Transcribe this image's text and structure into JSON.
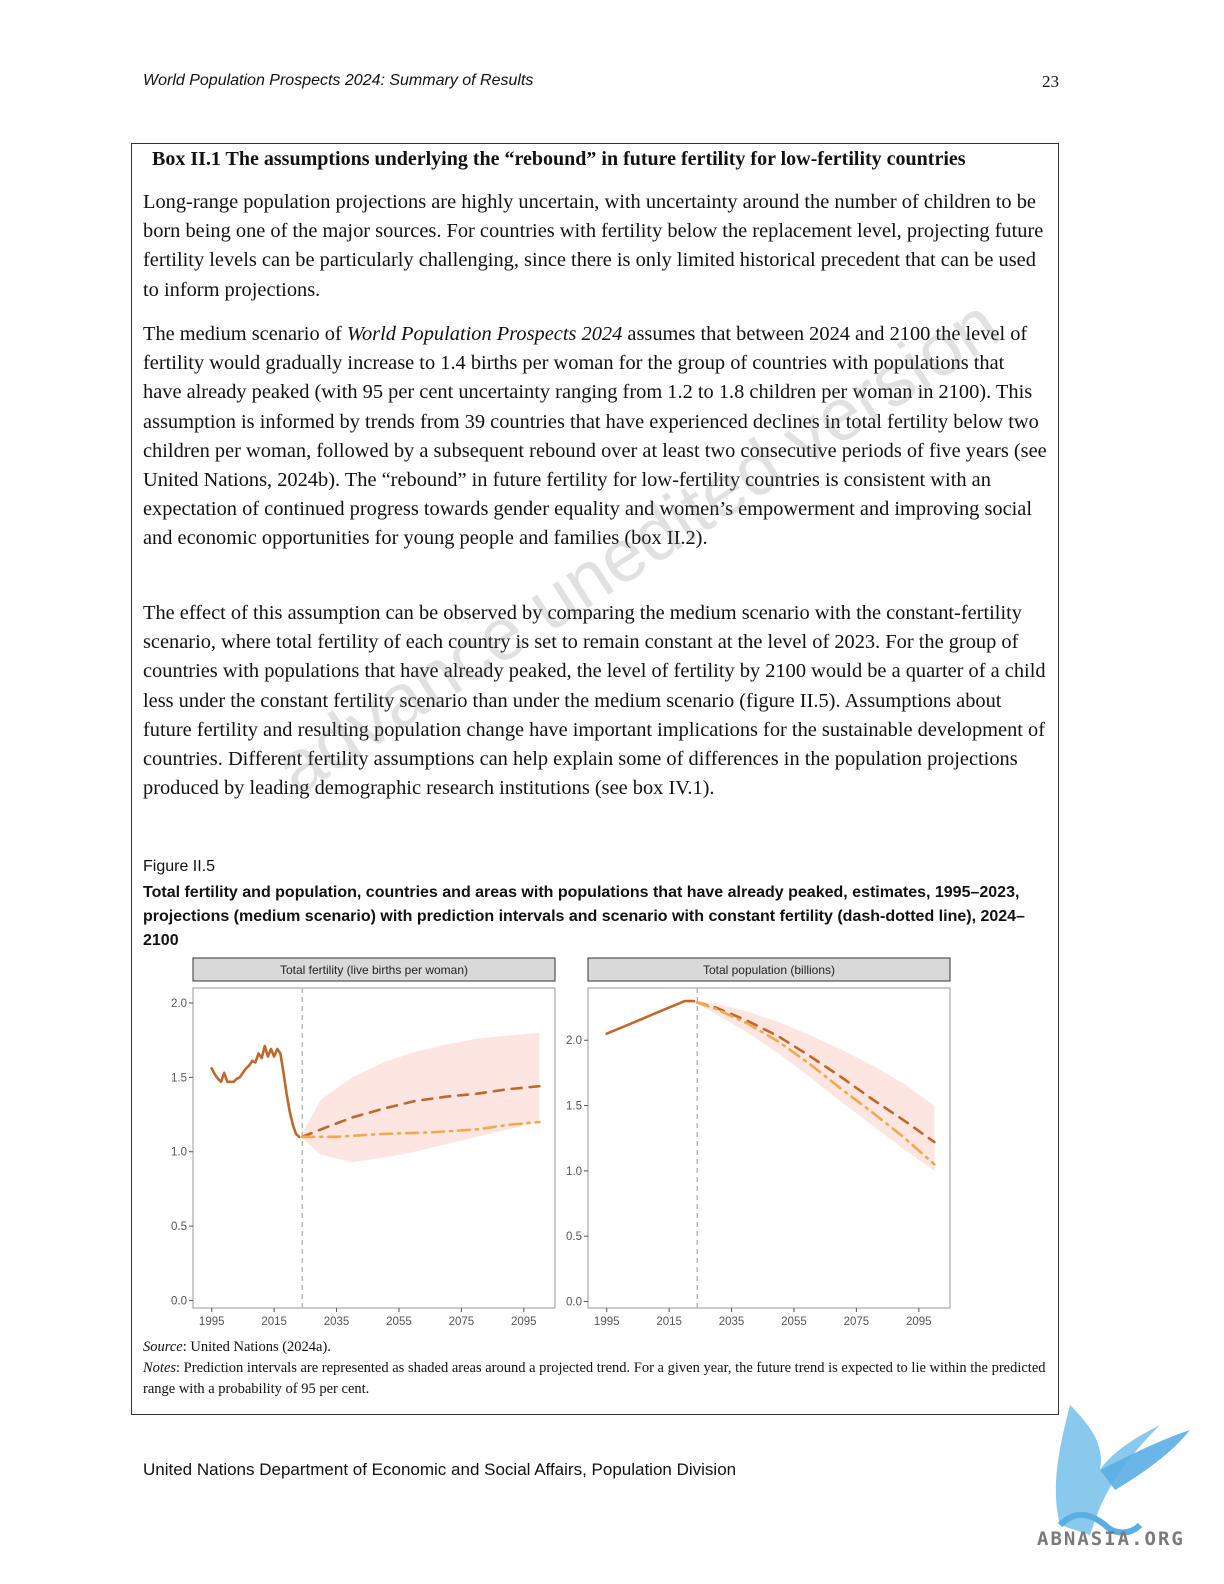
{
  "header": {
    "running_title": "World Population Prospects 2024: Summary of Results",
    "page_number": "23"
  },
  "box": {
    "title": "Box II.1 The assumptions underlying the “rebound” in future fertility for low-fertility countries",
    "para1": "Long-range population projections are highly uncertain, with uncertainty around the number of children to be born being one of the major sources. For countries with fertility below the replacement level, projecting future fertility levels can be particularly challenging, since there is only limited historical precedent that can be used to inform projections.",
    "para2_prefix": "The medium scenario of ",
    "para2_italic": "World Population Prospects 2024",
    "para2_rest": " assumes that between 2024 and 2100 the level of fertility would gradually increase to 1.4 births per woman for the group of countries with populations that have already peaked (with 95 per cent uncertainty ranging from 1.2 to 1.8 children per woman in 2100). This assumption is informed by trends from 39 countries that have experienced declines in total fertility below two children per woman, followed by a subsequent rebound over at least two consecutive periods of five years (see United Nations, 2024b). The “rebound” in future fertility for low-fertility countries is consistent with an expectation of continued progress towards gender equality and women’s empowerment and improving social and economic opportunities for young people and families (box II.2).",
    "para3": "The effect of this assumption can be observed by comparing the medium scenario with the constant-fertility scenario, where total fertility of each country is set to remain constant at the level of 2023. For the group of countries with populations that have already peaked, the level of fertility by 2100 would be a quarter of a child less under the constant fertility scenario than under the medium scenario (figure II.5). Assumptions about future fertility and resulting population change have important implications for the sustainable development of countries. Different fertility assumptions can help explain some of differences in the population projections produced by leading demographic research institutions (see box IV.1)."
  },
  "figure": {
    "label": "Figure II.5",
    "title": "Total fertility and population, countries and areas with populations that have already peaked, estimates, 1995–2023, projections (medium scenario) with prediction intervals and scenario with constant fertility (dash-dotted line), 2024–2100",
    "source_label": "Source",
    "source_text": ": United Nations (2024a).",
    "notes_label": "Notes",
    "notes_text": ": Prediction intervals are represented as shaded areas around a projected trend. For a given year, the future trend is expected to lie within the predicted range with a probability of 95 per cent."
  },
  "chart_data": [
    {
      "type": "line",
      "title": "Total fertility (live births per woman)",
      "x_ticks": [
        1995,
        2015,
        2035,
        2055,
        2075,
        2095
      ],
      "y_ticks": [
        0.0,
        0.5,
        1.0,
        1.5,
        2.0
      ],
      "xlim": [
        1989,
        2105
      ],
      "ylim": [
        -0.05,
        2.1
      ],
      "divider_year": 2024,
      "grid": false,
      "series": [
        {
          "key": "estimate",
          "style": "solid",
          "color": "#c0682a",
          "x": [
            1995,
            1996,
            1997,
            1998,
            1999,
            2000,
            2001,
            2002,
            2003,
            2004,
            2005,
            2006,
            2007,
            2008,
            2009,
            2010,
            2011,
            2012,
            2013,
            2014,
            2015,
            2016,
            2017,
            2018,
            2019,
            2020,
            2021,
            2022,
            2023
          ],
          "y": [
            1.56,
            1.52,
            1.49,
            1.47,
            1.53,
            1.47,
            1.47,
            1.47,
            1.49,
            1.5,
            1.53,
            1.56,
            1.58,
            1.61,
            1.6,
            1.66,
            1.63,
            1.71,
            1.64,
            1.69,
            1.64,
            1.69,
            1.66,
            1.53,
            1.39,
            1.27,
            1.18,
            1.12,
            1.1
          ]
        },
        {
          "key": "medium",
          "style": "dashed",
          "color": "#c0682a",
          "x": [
            2024,
            2030,
            2040,
            2050,
            2060,
            2070,
            2080,
            2090,
            2100
          ],
          "y": [
            1.1,
            1.15,
            1.23,
            1.29,
            1.34,
            1.37,
            1.39,
            1.42,
            1.44
          ]
        },
        {
          "key": "constant",
          "style": "dashdot",
          "color": "#f0a94c",
          "x": [
            2024,
            2035,
            2050,
            2065,
            2080,
            2090,
            2100
          ],
          "y": [
            1.1,
            1.1,
            1.12,
            1.13,
            1.15,
            1.18,
            1.2
          ]
        }
      ],
      "interval": {
        "color": "#fde0dc",
        "x": [
          2024,
          2030,
          2040,
          2050,
          2060,
          2070,
          2080,
          2090,
          2100
        ],
        "lower": [
          1.09,
          0.98,
          0.93,
          0.96,
          1.0,
          1.05,
          1.1,
          1.15,
          1.2
        ],
        "upper": [
          1.12,
          1.35,
          1.5,
          1.6,
          1.67,
          1.72,
          1.76,
          1.78,
          1.8
        ]
      }
    },
    {
      "type": "line",
      "title": "Total population (billions)",
      "x_ticks": [
        1995,
        2015,
        2035,
        2055,
        2075,
        2095
      ],
      "y_ticks": [
        0.0,
        0.5,
        1.0,
        1.5,
        2.0
      ],
      "xlim": [
        1989,
        2105
      ],
      "ylim": [
        -0.05,
        2.4
      ],
      "divider_year": 2024,
      "grid": false,
      "series": [
        {
          "key": "estimate",
          "style": "solid",
          "color": "#c0682a",
          "x": [
            1995,
            2000,
            2005,
            2010,
            2015,
            2018,
            2020,
            2022,
            2023
          ],
          "y": [
            2.05,
            2.1,
            2.15,
            2.2,
            2.25,
            2.28,
            2.3,
            2.3,
            2.3
          ]
        },
        {
          "key": "medium",
          "style": "dashed",
          "color": "#c0682a",
          "x": [
            2024,
            2030,
            2040,
            2050,
            2060,
            2070,
            2080,
            2090,
            2100
          ],
          "y": [
            2.29,
            2.25,
            2.15,
            2.03,
            1.88,
            1.72,
            1.55,
            1.39,
            1.22
          ]
        },
        {
          "key": "constant",
          "style": "dashdot",
          "color": "#f0a94c",
          "x": [
            2024,
            2030,
            2040,
            2050,
            2060,
            2070,
            2080,
            2090,
            2100
          ],
          "y": [
            2.29,
            2.24,
            2.13,
            1.99,
            1.82,
            1.63,
            1.45,
            1.26,
            1.05
          ]
        }
      ],
      "interval": {
        "color": "#fde0dc",
        "x": [
          2024,
          2030,
          2040,
          2050,
          2060,
          2070,
          2080,
          2090,
          2100
        ],
        "lower": [
          2.28,
          2.2,
          2.06,
          1.9,
          1.72,
          1.53,
          1.35,
          1.17,
          1.0
        ],
        "upper": [
          2.3,
          2.28,
          2.22,
          2.14,
          2.04,
          1.93,
          1.81,
          1.67,
          1.5
        ]
      }
    }
  ],
  "footer": {
    "org": "United Nations Department of Economic and Social Affairs, Population Division"
  },
  "watermark": {
    "text": "advance unedited version"
  },
  "logo": {
    "icon": "griffin-logo",
    "text": "ABNASIA.ORG",
    "color": "#6ab8e8"
  }
}
